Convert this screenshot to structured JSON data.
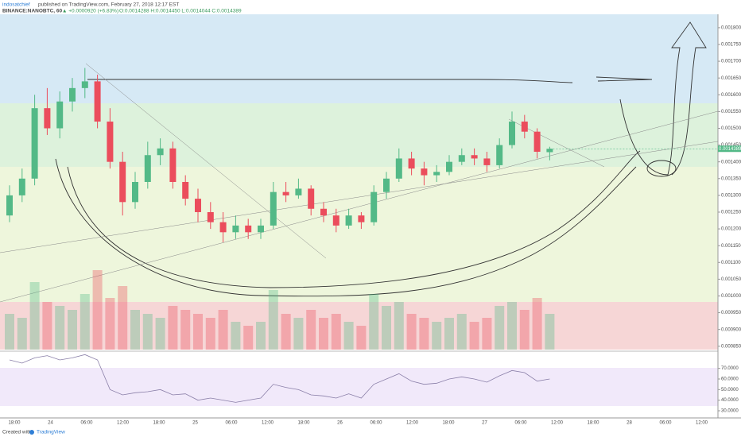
{
  "header": {
    "author": "indosatchief",
    "published": "published on TradingView.com, February 27, 2018 12:17 EST",
    "symbol": "BINANCE:NANOBTC, 60",
    "change": "▲ +0.0000920 (+6.83%)",
    "ohlc": "O:0.0014288 H:0.0014450 L:0.0014044 C:0.0014389"
  },
  "chart_data": {
    "type": "candlestick",
    "candles": [
      [
        0.00124,
        0.00133,
        0.00122,
        0.0013
      ],
      [
        0.0013,
        0.00138,
        0.00128,
        0.00135
      ],
      [
        0.00135,
        0.0016,
        0.00133,
        0.00156
      ],
      [
        0.00156,
        0.00162,
        0.00148,
        0.0015
      ],
      [
        0.0015,
        0.00161,
        0.00147,
        0.00158
      ],
      [
        0.00158,
        0.00165,
        0.00155,
        0.00162
      ],
      [
        0.00162,
        0.00168,
        0.00159,
        0.00164
      ],
      [
        0.00164,
        0.00166,
        0.0015,
        0.00152
      ],
      [
        0.00152,
        0.00156,
        0.00138,
        0.0014
      ],
      [
        0.0014,
        0.00143,
        0.00124,
        0.00128
      ],
      [
        0.00128,
        0.00137,
        0.00126,
        0.00134
      ],
      [
        0.00134,
        0.00146,
        0.00132,
        0.00142
      ],
      [
        0.00142,
        0.00147,
        0.00139,
        0.00144
      ],
      [
        0.00144,
        0.00146,
        0.00132,
        0.00134
      ],
      [
        0.00134,
        0.00136,
        0.00127,
        0.00129
      ],
      [
        0.00129,
        0.00132,
        0.00122,
        0.00125
      ],
      [
        0.00125,
        0.00128,
        0.0012,
        0.00122
      ],
      [
        0.00122,
        0.00125,
        0.00116,
        0.00119
      ],
      [
        0.00119,
        0.00124,
        0.00117,
        0.00121
      ],
      [
        0.00121,
        0.00123,
        0.00117,
        0.00119
      ],
      [
        0.00119,
        0.00123,
        0.00117,
        0.00121
      ],
      [
        0.00121,
        0.00134,
        0.0012,
        0.00131
      ],
      [
        0.00131,
        0.00134,
        0.00128,
        0.0013
      ],
      [
        0.0013,
        0.00135,
        0.00129,
        0.00132
      ],
      [
        0.00132,
        0.00133,
        0.00124,
        0.00126
      ],
      [
        0.00126,
        0.00128,
        0.00122,
        0.00124
      ],
      [
        0.00124,
        0.00126,
        0.00119,
        0.00121
      ],
      [
        0.00121,
        0.00126,
        0.0012,
        0.00124
      ],
      [
        0.00124,
        0.00125,
        0.0012,
        0.00122
      ],
      [
        0.00122,
        0.00133,
        0.00121,
        0.00131
      ],
      [
        0.00131,
        0.00137,
        0.00129,
        0.00135
      ],
      [
        0.00135,
        0.00144,
        0.00134,
        0.00141
      ],
      [
        0.00141,
        0.00143,
        0.00136,
        0.00138
      ],
      [
        0.00138,
        0.0014,
        0.00133,
        0.00136
      ],
      [
        0.00136,
        0.00139,
        0.00134,
        0.00137
      ],
      [
        0.00137,
        0.00142,
        0.00136,
        0.0014
      ],
      [
        0.0014,
        0.00144,
        0.00139,
        0.00142
      ],
      [
        0.00142,
        0.00144,
        0.00139,
        0.00141
      ],
      [
        0.00141,
        0.00143,
        0.00137,
        0.00139
      ],
      [
        0.00139,
        0.00147,
        0.00138,
        0.00145
      ],
      [
        0.00145,
        0.00155,
        0.00144,
        0.00152
      ],
      [
        0.00152,
        0.00154,
        0.00147,
        0.00149
      ],
      [
        0.00149,
        0.0015,
        0.00141,
        0.00143
      ],
      [
        0.0014288,
        0.001445,
        0.0014044,
        0.0014389
      ]
    ],
    "up_color": "#53b987",
    "down_color": "#eb4d5c",
    "ylim": [
      0.00084,
      0.00184
    ],
    "yticks": [
      {
        "value": 0.0018,
        "label": "0.0018000"
      },
      {
        "value": 0.00175,
        "label": "0.0017500"
      },
      {
        "value": 0.0017,
        "label": "0.0017000"
      },
      {
        "value": 0.00165,
        "label": "0.0016500"
      },
      {
        "value": 0.0016,
        "label": "0.0016000"
      },
      {
        "value": 0.00155,
        "label": "0.0015500"
      },
      {
        "value": 0.0015,
        "label": "0.0015000"
      },
      {
        "value": 0.00145,
        "label": "0.0014500"
      },
      {
        "value": 0.0014,
        "label": "0.0014000"
      },
      {
        "value": 0.00135,
        "label": "0.0013500"
      },
      {
        "value": 0.0013,
        "label": "0.0013000"
      },
      {
        "value": 0.00125,
        "label": "0.0012500"
      },
      {
        "value": 0.0012,
        "label": "0.0012000"
      },
      {
        "value": 0.00115,
        "label": "0.0011500"
      },
      {
        "value": 0.0011,
        "label": "0.0011000"
      },
      {
        "value": 0.00105,
        "label": "0.0010500"
      },
      {
        "value": 0.001,
        "label": "0.0010000"
      },
      {
        "value": 0.00095,
        "label": "0.0009500"
      },
      {
        "value": 0.0009,
        "label": "0.0009000"
      },
      {
        "value": 0.00085,
        "label": "0.0008500"
      }
    ],
    "volume": [
      45,
      40,
      85,
      60,
      55,
      50,
      70,
      100,
      65,
      80,
      50,
      45,
      40,
      55,
      50,
      45,
      40,
      50,
      35,
      30,
      35,
      75,
      45,
      40,
      50,
      40,
      45,
      35,
      30,
      70,
      55,
      60,
      45,
      40,
      35,
      40,
      45,
      35,
      40,
      55,
      60,
      50,
      65,
      45
    ],
    "rsi": {
      "values": [
        78,
        75,
        80,
        82,
        78,
        80,
        83,
        78,
        50,
        45,
        47,
        48,
        50,
        45,
        46,
        40,
        42,
        40,
        38,
        40,
        42,
        55,
        52,
        50,
        45,
        44,
        42,
        46,
        42,
        55,
        60,
        65,
        58,
        55,
        56,
        60,
        62,
        60,
        57,
        63,
        68,
        66,
        58,
        60
      ],
      "color": "#8a7fa8",
      "ylim": [
        24,
        84
      ],
      "yticks": [
        {
          "value": 70,
          "label": "70.0000"
        },
        {
          "value": 60,
          "label": "60.0000"
        },
        {
          "value": 50,
          "label": "50.0000"
        },
        {
          "value": 40,
          "label": "40.0000"
        },
        {
          "value": 30,
          "label": "30.0000"
        }
      ]
    },
    "xticks": [
      "18:00",
      "24",
      "06:00",
      "12:00",
      "18:00",
      "25",
      "06:00",
      "12:00",
      "18:00",
      "26",
      "06:00",
      "12:00",
      "18:00",
      "27",
      "06:00",
      "12:00",
      "18:00",
      "28",
      "06:00",
      "12:00"
    ]
  },
  "footer": {
    "created": "Created with",
    "brand": "TradingView"
  }
}
